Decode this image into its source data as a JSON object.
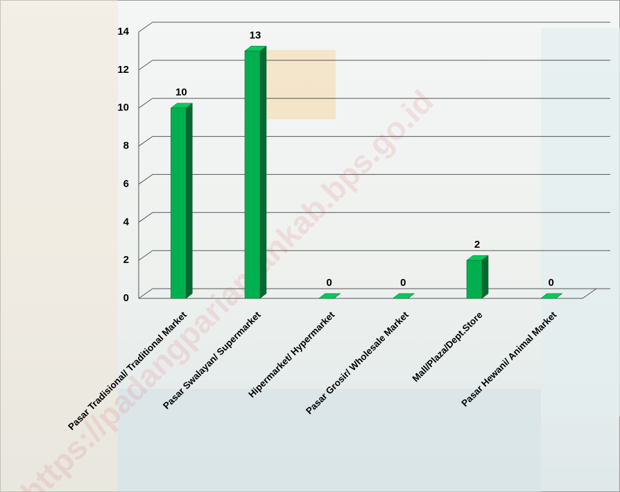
{
  "chart_data": {
    "type": "bar3d",
    "categories": [
      "Pasar Tradisional/ Traditional Market",
      "Pasar Swalayan/ Supermarket",
      "Hipermarket/  Hypermarket",
      "Pasar Grosir/ Wholesale Market",
      "Mall/Plaza/Dept.Store",
      "Pasar Hewani/ Animal Market"
    ],
    "values": [
      10,
      13,
      0,
      0,
      2,
      0
    ],
    "color": "#00b050",
    "ylim": [
      0,
      14
    ],
    "yticks": [
      0,
      2,
      4,
      6,
      8,
      10,
      12,
      14
    ],
    "grid": true,
    "watermark": "https://padangpariamankab.bps.go.id"
  }
}
